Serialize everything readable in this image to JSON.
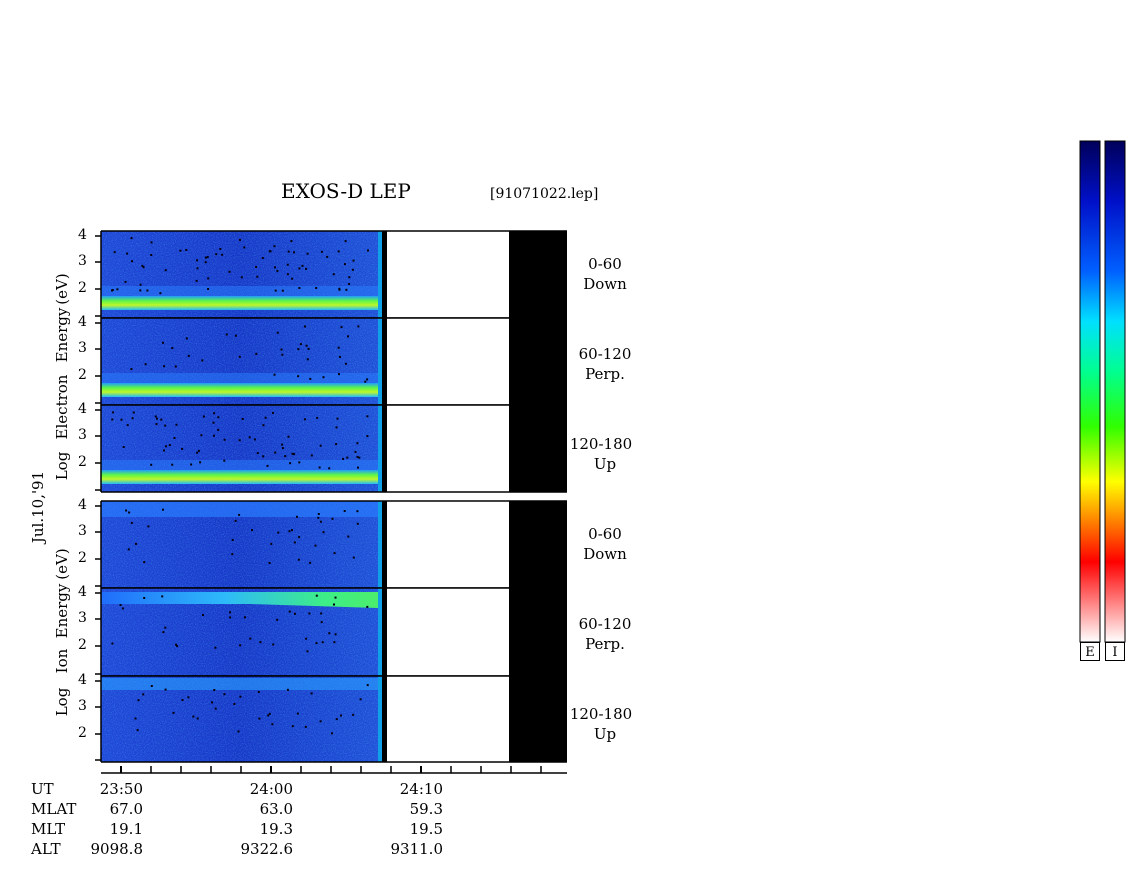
{
  "chart_data": {
    "type": "heatmap",
    "title": "EXOS-D LEP",
    "file_tag": "[91071022.lep]",
    "date_label": "Jul.10,'91",
    "y_ticks": [
      "4",
      "3",
      "2"
    ],
    "electron_axis_label": [
      "Log",
      "Electron",
      "Energy",
      "(eV)"
    ],
    "ion_axis_label": [
      "Log",
      "Ion",
      "Energy",
      "(eV)"
    ],
    "electron_panels": [
      {
        "angle": "0-60",
        "direction": "Down"
      },
      {
        "angle": "60-120",
        "direction": "Perp."
      },
      {
        "angle": "120-180",
        "direction": "Up"
      }
    ],
    "ion_panels": [
      {
        "angle": "0-60",
        "direction": "Down"
      },
      {
        "angle": "60-120",
        "direction": "Perp."
      },
      {
        "angle": "120-180",
        "direction": "Up"
      }
    ],
    "axis_table": {
      "row_labels": [
        "UT",
        "MLAT",
        "MLT",
        "ALT"
      ],
      "columns": [
        {
          "UT": "23:50",
          "MLAT": "67.0",
          "MLT": "19.1",
          "ALT": "9098.8"
        },
        {
          "UT": "24:00",
          "MLAT": "63.0",
          "MLT": "19.3",
          "ALT": "9322.6"
        },
        {
          "UT": "24:10",
          "MLAT": "59.3",
          "MLT": "19.5",
          "ALT": "9311.0"
        }
      ]
    },
    "colorbars": [
      "E",
      "I"
    ],
    "colors": {
      "background": "#1e3cc8",
      "band": "#50f028",
      "no_data": "#000000",
      "colorbar_stops": [
        "#000060",
        "#0000ff",
        "#00c0ff",
        "#00ffff",
        "#00ff40",
        "#40ff00",
        "#ffff00",
        "#ff8000",
        "#ff0000",
        "#ffffff"
      ]
    }
  }
}
